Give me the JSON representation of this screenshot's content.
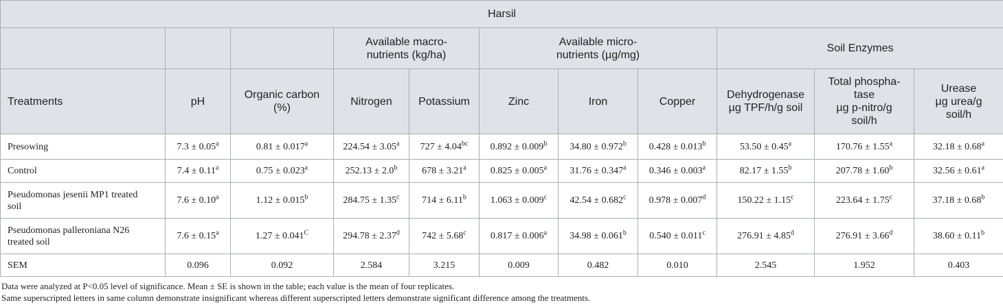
{
  "table": {
    "title": "Harsil",
    "groups": [
      {
        "lines": [
          "Available macro-",
          "nutrients (kg/ha)"
        ]
      },
      {
        "lines": [
          "Available micro-",
          "nutrients (µg/mg)"
        ]
      },
      {
        "lines": [
          "Soil Enzymes"
        ]
      }
    ],
    "columns": [
      {
        "lines": [
          "Treatments"
        ]
      },
      {
        "lines": [
          "pH"
        ]
      },
      {
        "lines": [
          "Organic carbon",
          "(%)"
        ]
      },
      {
        "lines": [
          "Nitrogen"
        ]
      },
      {
        "lines": [
          "Potassium"
        ]
      },
      {
        "lines": [
          "Zinc"
        ]
      },
      {
        "lines": [
          "Iron"
        ]
      },
      {
        "lines": [
          "Copper"
        ]
      },
      {
        "lines": [
          "Dehydrogenase",
          "µg TPF/h/g soil"
        ]
      },
      {
        "lines": [
          "Total phospha-",
          "tase",
          "µg p-nitro/g",
          "soil/h"
        ]
      },
      {
        "lines": [
          "Urease",
          "µg urea/g",
          "soil/h"
        ]
      }
    ],
    "rows": [
      {
        "treatment": [
          "Presowing"
        ],
        "cells": [
          {
            "text": "7.3 ± 0.05",
            "sup": "a"
          },
          {
            "text": "0.81 ± 0.017",
            "sup": "a"
          },
          {
            "text": "224.54 ± 3.05",
            "sup": "a"
          },
          {
            "text": "727 ± 4.04",
            "sup": "bc"
          },
          {
            "text": "0.892 ± 0.009",
            "sup": "b"
          },
          {
            "text": "34.80 ± 0.972",
            "sup": "b"
          },
          {
            "text": "0.428 ± 0.013",
            "sup": "b"
          },
          {
            "text": "53.50 ± 0.45",
            "sup": "a"
          },
          {
            "text": "170.76 ± 1.55",
            "sup": "a"
          },
          {
            "text": "32.18 ± 0.68",
            "sup": "a"
          }
        ]
      },
      {
        "treatment": [
          "Control"
        ],
        "cells": [
          {
            "text": "7.4 ± 0.11",
            "sup": "a"
          },
          {
            "text": "0.75 ± 0.023",
            "sup": "a"
          },
          {
            "text": "252.13 ± 2.0",
            "sup": "b"
          },
          {
            "text": "678 ± 3.21",
            "sup": "a"
          },
          {
            "text": "0.825 ± 0.005",
            "sup": "a"
          },
          {
            "text": "31.76 ± 0.347",
            "sup": "a"
          },
          {
            "text": "0.346 ± 0.003",
            "sup": "a"
          },
          {
            "text": "82.17 ± 1.55",
            "sup": "b"
          },
          {
            "text": "207.78 ± 1.60",
            "sup": "b"
          },
          {
            "text": "32.56 ± 0.61",
            "sup": "a"
          }
        ]
      },
      {
        "treatment": [
          "Pseudomonas jesenii MP1 treated",
          "soil"
        ],
        "cells": [
          {
            "text": "7.6 ± 0.10",
            "sup": "a"
          },
          {
            "text": "1.12 ± 0.015",
            "sup": "b"
          },
          {
            "text": "284.75 ± 1.35",
            "sup": "c"
          },
          {
            "text": "714 ± 6.11",
            "sup": "b"
          },
          {
            "text": "1.063 ± 0.009",
            "sup": "c"
          },
          {
            "text": "42.54 ± 0.682",
            "sup": "c"
          },
          {
            "text": "0.978 ± 0.007",
            "sup": "d"
          },
          {
            "text": "150.22 ± 1.15",
            "sup": "c"
          },
          {
            "text": "223.64 ± 1.75",
            "sup": "c"
          },
          {
            "text": "37.18 ± 0.68",
            "sup": "b"
          }
        ]
      },
      {
        "treatment": [
          "Pseudomonas palleroniana N26",
          "treated soil"
        ],
        "cells": [
          {
            "text": "7.6 ± 0.15",
            "sup": "a"
          },
          {
            "text": "1.27 ± 0.041",
            "sup": "C"
          },
          {
            "text": "294.78 ± 2.37",
            "sup": "d"
          },
          {
            "text": "742 ± 5.68",
            "sup": "c"
          },
          {
            "text": "0.817 ± 0.006",
            "sup": "a"
          },
          {
            "text": "34.98 ± 0.061",
            "sup": "b"
          },
          {
            "text": "0.540 ± 0.011",
            "sup": "c"
          },
          {
            "text": "276.91 ± 4.85",
            "sup": "d"
          },
          {
            "text": "276.91 ± 3.66",
            "sup": "d"
          },
          {
            "text": "38.60 ± 0.11",
            "sup": "b"
          }
        ]
      },
      {
        "treatment": [
          "SEM"
        ],
        "cells": [
          {
            "text": "0.096"
          },
          {
            "text": "0.092"
          },
          {
            "text": "2.584"
          },
          {
            "text": "3.215"
          },
          {
            "text": "0.009"
          },
          {
            "text": "0.482"
          },
          {
            "text": "0.010"
          },
          {
            "text": "2.545"
          },
          {
            "text": "1.952"
          },
          {
            "text": "0.403"
          }
        ]
      }
    ],
    "footnotes": [
      "Data were analyzed at P<0.05 level of significance. Mean ± SE is shown in the table; each value is the mean of four replicates.",
      "Same superscripted letters in same column demonstrate insignificant whereas different superscripted letters demonstrate significant difference among the treatments."
    ]
  }
}
